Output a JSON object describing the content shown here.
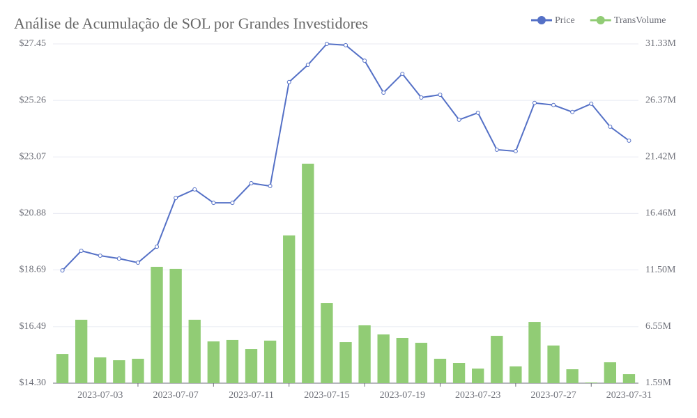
{
  "chart_data": {
    "type": "bar-line",
    "title": "Análise de Acumulação de SOL por Grandes Investidores",
    "categories": [
      null,
      null,
      "2023-07-03",
      null,
      null,
      null,
      "2023-07-07",
      null,
      null,
      null,
      "2023-07-11",
      null,
      null,
      null,
      "2023-07-15",
      null,
      null,
      null,
      "2023-07-19",
      null,
      null,
      null,
      "2023-07-23",
      null,
      null,
      null,
      "2023-07-27",
      null,
      null,
      null,
      "2023-07-31"
    ],
    "series": [
      {
        "name": "Price",
        "color": "#5470c6",
        "type": "line",
        "axis": "y",
        "values": [
          18.67,
          19.43,
          19.24,
          19.13,
          18.97,
          19.59,
          21.48,
          21.81,
          21.29,
          21.29,
          22.05,
          21.94,
          25.97,
          26.64,
          27.45,
          27.4,
          26.8,
          25.56,
          26.29,
          25.37,
          25.48,
          24.51,
          24.78,
          23.35,
          23.29,
          25.16,
          25.08,
          24.81,
          25.13,
          24.24,
          23.7
        ]
      },
      {
        "name": "TransVolume",
        "color": "#91cc75",
        "type": "bar",
        "axis": "y2",
        "values": [
          4.15,
          7.15,
          3.85,
          3.6,
          3.73,
          11.79,
          11.61,
          7.15,
          5.25,
          5.38,
          4.58,
          5.32,
          14.54,
          20.83,
          8.61,
          5.19,
          6.66,
          5.86,
          5.56,
          5.13,
          3.73,
          3.36,
          2.87,
          5.74,
          3.06,
          6.96,
          4.89,
          2.81,
          1.65,
          3.42,
          2.38
        ]
      }
    ],
    "ylim": [
      14.3,
      27.45
    ],
    "yticks": [
      {
        "value": 14.3,
        "label": "$14.30"
      },
      {
        "value": 16.49,
        "label": "$16.49"
      },
      {
        "value": 18.69,
        "label": "$18.69"
      },
      {
        "value": 20.88,
        "label": "$20.88"
      },
      {
        "value": 23.07,
        "label": "$23.07"
      },
      {
        "value": 25.26,
        "label": "$25.26"
      },
      {
        "value": 27.45,
        "label": "$27.45"
      }
    ],
    "y2lim": [
      1.59,
      31.33
    ],
    "y2ticks": [
      {
        "value": 1.59,
        "label": "1.59M"
      },
      {
        "value": 6.55,
        "label": "6.55M"
      },
      {
        "value": 11.5,
        "label": "11.50M"
      },
      {
        "value": 16.46,
        "label": "16.46M"
      },
      {
        "value": 21.42,
        "label": "21.42M"
      },
      {
        "value": 26.37,
        "label": "26.37M"
      },
      {
        "value": 31.33,
        "label": "31.33M"
      }
    ],
    "grid": true,
    "legend": "top-right"
  }
}
